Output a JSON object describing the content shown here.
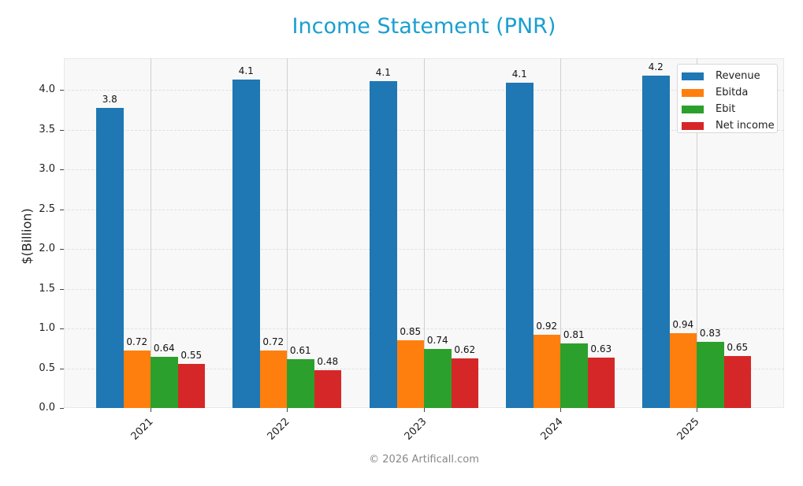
{
  "title": "Income Statement (PNR)",
  "footer": "© 2026 Artificall.com",
  "colors": {
    "title": "#1a9fd0",
    "Revenue": "#1f77b4",
    "Ebitda": "#ff7f0e",
    "Ebit": "#2ca02c",
    "Net income": "#d62728"
  },
  "chart_data": {
    "type": "bar",
    "title": "Income Statement (PNR)",
    "xlabel": "",
    "ylabel": "$(Billion)",
    "ylim": [
      0,
      4.4
    ],
    "yticks": [
      "0.0",
      "0.5",
      "1.0",
      "1.5",
      "2.0",
      "2.5",
      "3.0",
      "3.5",
      "4.0"
    ],
    "categories": [
      "2021",
      "2022",
      "2023",
      "2024",
      "2025"
    ],
    "grid": true,
    "legend_position": "upper right",
    "series": [
      {
        "name": "Revenue",
        "values": [
          3.77,
          4.13,
          4.11,
          4.09,
          4.18
        ],
        "labels": [
          "3.8",
          "4.1",
          "4.1",
          "4.1",
          "4.2"
        ]
      },
      {
        "name": "Ebitda",
        "values": [
          0.72,
          0.72,
          0.85,
          0.92,
          0.94
        ],
        "labels": [
          "0.72",
          "0.72",
          "0.85",
          "0.92",
          "0.94"
        ]
      },
      {
        "name": "Ebit",
        "values": [
          0.64,
          0.61,
          0.74,
          0.81,
          0.83
        ],
        "labels": [
          "0.64",
          "0.61",
          "0.74",
          "0.81",
          "0.83"
        ]
      },
      {
        "name": "Net income",
        "values": [
          0.55,
          0.48,
          0.62,
          0.63,
          0.65
        ],
        "labels": [
          "0.55",
          "0.48",
          "0.62",
          "0.63",
          "0.65"
        ]
      }
    ]
  }
}
